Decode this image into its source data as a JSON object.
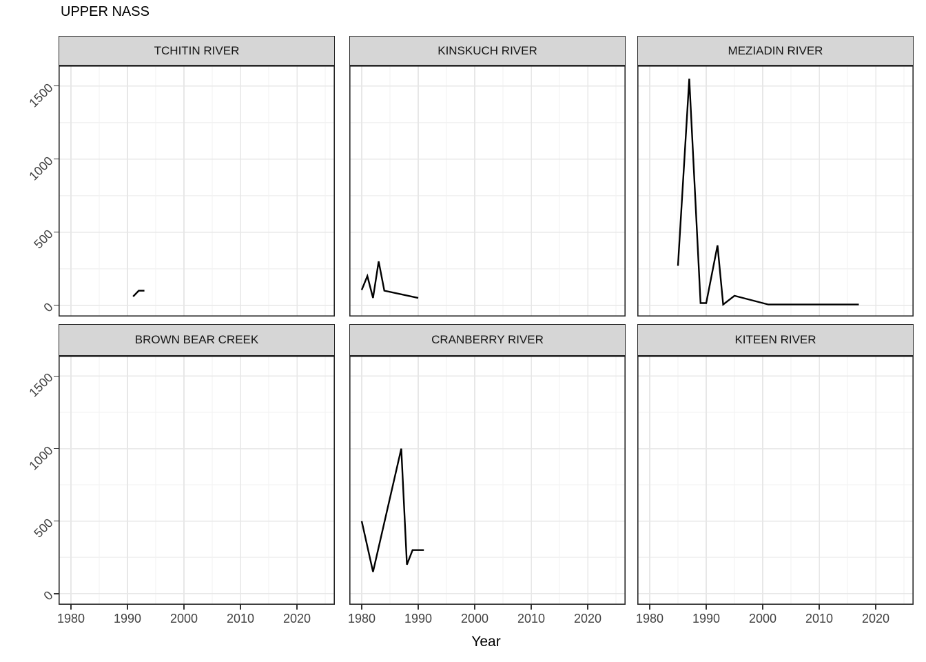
{
  "title": "UPPER NASS",
  "xlabel": "Year",
  "axis": {
    "x_ticks": [
      1980,
      1990,
      2000,
      2010,
      2020
    ],
    "x_minor_ticks": [
      1985,
      1995,
      2005,
      2015,
      2025
    ],
    "y_ticks": [
      0,
      500,
      1000,
      1500
    ],
    "y_minor_ticks": [
      250,
      750,
      1250
    ],
    "x_domain": [
      1977.8,
      2026.7
    ],
    "y_domain": [
      -77,
      1640
    ]
  },
  "colors": {
    "line": "#000000",
    "strip_fill": "#D6D6D6",
    "strip_border": "#262626",
    "panel_border": "#262626",
    "grid_major": "#E7E7E7",
    "grid_minor": "#F2F2F2",
    "axis_text": "#424242",
    "tick": "#333333",
    "background": "#FFFFFF"
  },
  "chart_data": [
    {
      "type": "line",
      "title": "TCHITIN RIVER",
      "xlabel": "Year",
      "x": [
        1991,
        1992,
        1993
      ],
      "y": [
        60,
        100,
        100
      ]
    },
    {
      "type": "line",
      "title": "KINSKUCH RIVER",
      "xlabel": "Year",
      "x": [
        1980,
        1981,
        1982,
        1983,
        1984,
        1990
      ],
      "y": [
        105,
        200,
        50,
        300,
        100,
        50
      ]
    },
    {
      "type": "line",
      "title": "MEZIADIN RIVER",
      "xlabel": "Year",
      "x": [
        1985,
        1987,
        1989,
        1990,
        1992,
        1993,
        1995,
        2001,
        2017
      ],
      "y": [
        270,
        1550,
        15,
        15,
        410,
        5,
        65,
        5,
        5
      ]
    },
    {
      "type": "line",
      "title": "BROWN BEAR CREEK",
      "xlabel": "Year",
      "x": [],
      "y": []
    },
    {
      "type": "line",
      "title": "CRANBERRY RIVER",
      "xlabel": "Year",
      "x": [
        1980,
        1982,
        1987,
        1988,
        1989,
        1991
      ],
      "y": [
        500,
        150,
        1000,
        200,
        300,
        300
      ]
    },
    {
      "type": "line",
      "title": "KITEEN RIVER",
      "xlabel": "Year",
      "x": [],
      "y": []
    }
  ]
}
